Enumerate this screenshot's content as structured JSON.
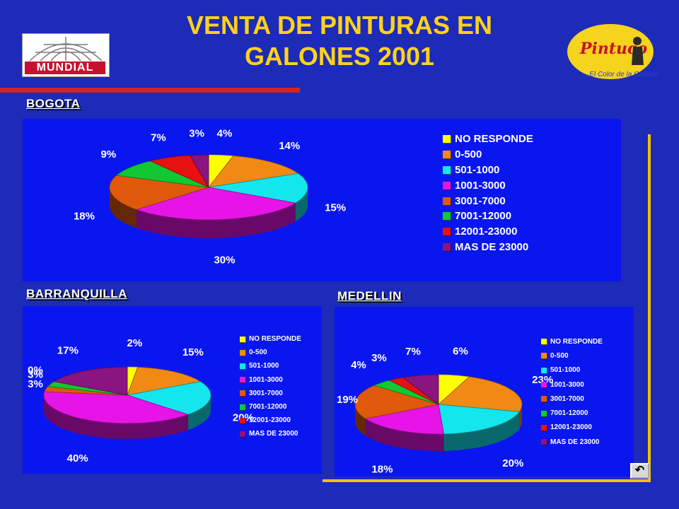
{
  "title": [
    "VENTA DE PINTURAS EN",
    "GALONES  2001"
  ],
  "logo_left": {
    "text": "MUNDIAL"
  },
  "logo_right": {
    "brand": "Pintuco",
    "slogan": "El Color de la Calidad"
  },
  "return_button": {
    "icon": "return-arrow-icon",
    "label": "↶"
  },
  "colors": {
    "background": "#1d2bb8",
    "panel": "#0a16f0",
    "title": "#ffd21a",
    "frame": "#f2c200",
    "accent_bar": "#d8231c",
    "slices": [
      "#ffff00",
      "#f08a14",
      "#14e6ee",
      "#e614e6",
      "#e0590a",
      "#10c832",
      "#e81010",
      "#8a1480"
    ]
  },
  "chart_data": [
    {
      "type": "pie",
      "title": "BOGOTA",
      "legend": [
        "NO RESPONDE",
        "0-500",
        "501-1000",
        "1001-3000",
        "3001-7000",
        "7001-12000",
        "12001-23000",
        "MAS DE 23000"
      ],
      "values": [
        4,
        14,
        15,
        30,
        18,
        9,
        7,
        3
      ],
      "labels": [
        "4%",
        "14%",
        "15%",
        "30%",
        "18%",
        "9%",
        "7%",
        "3%"
      ],
      "legend_position": "right"
    },
    {
      "type": "pie",
      "title": "BARRANQUILLA",
      "legend": [
        "NO RESPONDE",
        "0-500",
        "501-1000",
        "1001-3000",
        "3001-7000",
        "7001-12000",
        "12001-23000",
        "MAS DE 23000"
      ],
      "values": [
        2,
        15,
        20,
        40,
        3,
        3,
        0,
        17
      ],
      "labels": [
        "2%",
        "15%",
        "20%",
        "40%",
        "3%",
        "3%",
        "0%",
        "17%"
      ],
      "legend_position": "right"
    },
    {
      "type": "pie",
      "title": "MEDELLIN",
      "legend": [
        "NO RESPONDE",
        "0-500",
        "501-1000",
        "1001-3000",
        "3001-7000",
        "7001-12000",
        "12001-23000",
        "MAS DE 23000"
      ],
      "values": [
        6,
        23,
        20,
        18,
        19,
        4,
        3,
        7
      ],
      "labels": [
        "6%",
        "23%",
        "20%",
        "18%",
        "19%",
        "4%",
        "3%",
        "7%"
      ],
      "legend_position": "right"
    }
  ]
}
